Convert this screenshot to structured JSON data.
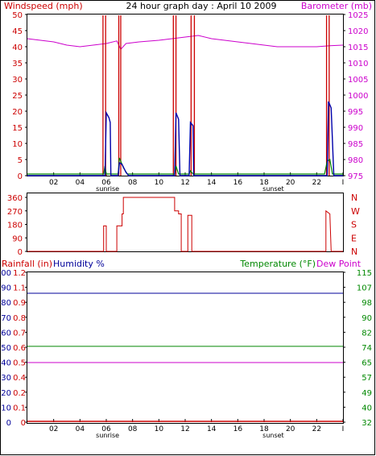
{
  "colors": {
    "frame": "#000000",
    "wind_axis": "#cc0000",
    "barometer": "#cc00cc",
    "wind_avg": "#0000aa",
    "wind_gust": "#008800",
    "direction": "#cc0000",
    "rainfall": "#cc0000",
    "humidity": "#000099",
    "temperature": "#008800",
    "dewpoint": "#cc00cc"
  },
  "chart_data": [
    {
      "id": "wind-baro",
      "type": "line",
      "title": "24 hour graph day : April 10 2009",
      "left_axis_label": "Windspeed (mph)",
      "right_axis_label": "Barometer (mb)",
      "x_ticks": [
        "02",
        "04",
        "06",
        "08",
        "10",
        "12",
        "14",
        "16",
        "18",
        "20",
        "22",
        "I"
      ],
      "x_annotations": [
        {
          "label": "sunrise",
          "hour": 6.1
        },
        {
          "label": "sunset",
          "hour": 18.7
        }
      ],
      "x_range": [
        0,
        24
      ],
      "left_ticks": [
        "0",
        "5",
        "10",
        "15",
        "20",
        "25",
        "30",
        "35",
        "40",
        "45",
        "50"
      ],
      "left_range": [
        0,
        50
      ],
      "right_ticks": [
        "975",
        "980",
        "985",
        "990",
        "995",
        "1000",
        "1005",
        "1010",
        "1015",
        "1020",
        "1025"
      ],
      "right_range": [
        975,
        1025
      ],
      "barometer": [
        [
          0,
          1017.5
        ],
        [
          1,
          1017
        ],
        [
          2,
          1016.5
        ],
        [
          3,
          1015.5
        ],
        [
          4,
          1015
        ],
        [
          5,
          1015.5
        ],
        [
          6,
          1016
        ],
        [
          6.8,
          1016.8
        ],
        [
          7.1,
          1014.2
        ],
        [
          7.5,
          1016
        ],
        [
          8.5,
          1016.5
        ],
        [
          10,
          1017
        ],
        [
          11,
          1017.5
        ],
        [
          12,
          1018
        ],
        [
          13,
          1018.5
        ],
        [
          14,
          1017.5
        ],
        [
          15,
          1017
        ],
        [
          16,
          1016.5
        ],
        [
          17,
          1016
        ],
        [
          18,
          1015.5
        ],
        [
          19,
          1015
        ],
        [
          20,
          1015
        ],
        [
          21,
          1015
        ],
        [
          22,
          1015
        ],
        [
          23,
          1015.3
        ],
        [
          24,
          1015.5
        ]
      ],
      "wind_avg": [
        [
          0,
          0
        ],
        [
          5.9,
          0
        ],
        [
          6.0,
          19.5
        ],
        [
          6.2,
          18
        ],
        [
          6.3,
          16.5
        ],
        [
          6.35,
          0
        ],
        [
          6.9,
          0
        ],
        [
          7.0,
          4
        ],
        [
          7.2,
          3.5
        ],
        [
          7.5,
          1
        ],
        [
          7.7,
          0
        ],
        [
          11.2,
          0
        ],
        [
          11.3,
          19.5
        ],
        [
          11.5,
          17.5
        ],
        [
          11.6,
          0
        ],
        [
          12.3,
          0
        ],
        [
          12.4,
          16.5
        ],
        [
          12.6,
          15.5
        ],
        [
          12.65,
          0
        ],
        [
          22.8,
          0
        ],
        [
          22.9,
          23
        ],
        [
          23.1,
          21
        ],
        [
          23.3,
          0
        ],
        [
          24,
          0
        ]
      ],
      "wind_gust": [
        [
          0,
          0.5
        ],
        [
          5.8,
          0.5
        ],
        [
          5.9,
          3
        ],
        [
          6.0,
          0.5
        ],
        [
          6.9,
          0.5
        ],
        [
          7.0,
          5.5
        ],
        [
          7.3,
          2.5
        ],
        [
          7.6,
          0.5
        ],
        [
          11.2,
          0.5
        ],
        [
          11.3,
          3
        ],
        [
          11.5,
          0.5
        ],
        [
          12.3,
          0.5
        ],
        [
          12.4,
          1.5
        ],
        [
          12.6,
          0.5
        ],
        [
          22.6,
          0.5
        ],
        [
          22.8,
          4.5
        ],
        [
          23.0,
          5
        ],
        [
          23.2,
          0.5
        ],
        [
          24,
          0.5
        ]
      ],
      "wind_red_spikes": [
        5.75,
        5.95,
        6.95,
        7.1,
        11.1,
        11.3,
        12.45,
        12.7,
        22.75,
        22.95
      ]
    },
    {
      "id": "direction",
      "type": "line",
      "left_ticks": [
        "0",
        "90",
        "180",
        "270",
        "360"
      ],
      "left_range": [
        0,
        360
      ],
      "right_ticks": [
        "N",
        "E",
        "S",
        "W",
        "N"
      ],
      "x_range": [
        0,
        24
      ],
      "direction": [
        [
          0,
          0
        ],
        [
          5.8,
          0
        ],
        [
          5.8,
          170
        ],
        [
          6.0,
          170
        ],
        [
          6.0,
          0
        ],
        [
          6.8,
          0
        ],
        [
          6.8,
          170
        ],
        [
          7.2,
          170
        ],
        [
          7.2,
          250
        ],
        [
          7.3,
          250
        ],
        [
          7.3,
          360
        ],
        [
          11.2,
          360
        ],
        [
          11.2,
          270
        ],
        [
          11.5,
          270
        ],
        [
          11.5,
          250
        ],
        [
          11.7,
          250
        ],
        [
          11.7,
          0
        ],
        [
          12.2,
          0
        ],
        [
          12.2,
          240
        ],
        [
          12.5,
          240
        ],
        [
          12.5,
          0
        ],
        [
          22.7,
          0
        ],
        [
          22.7,
          270
        ],
        [
          23.0,
          250
        ],
        [
          23.1,
          0
        ],
        [
          24,
          0
        ]
      ]
    },
    {
      "id": "rain-humidity-temp",
      "type": "line",
      "rain_label": "Rainfall (in)",
      "humidity_label": "Humidity %",
      "temp_label": "Temperature (°F)",
      "dew_label": "Dew Point",
      "x_ticks": [
        "02",
        "04",
        "06",
        "08",
        "10",
        "12",
        "14",
        "16",
        "18",
        "20",
        "22",
        "I"
      ],
      "x_annotations": [
        {
          "label": "sunrise",
          "hour": 6.1
        },
        {
          "label": "sunset",
          "hour": 18.7
        }
      ],
      "x_range": [
        0,
        24
      ],
      "humidity_ticks": [
        "0",
        "10",
        "20",
        "30",
        "40",
        "50",
        "60",
        "70",
        "80",
        "90",
        "100"
      ],
      "humidity_range": [
        0,
        100
      ],
      "rain_ticks": [
        "0",
        "0.1",
        "0.2",
        "0.4",
        "0.5",
        "0.6",
        "0.7",
        "0.8",
        "0.9",
        "1.1",
        "1.2"
      ],
      "rain_range": [
        0,
        1.2
      ],
      "temp_ticks": [
        "32",
        "40",
        "49",
        "57",
        "65",
        "74",
        "82",
        "90",
        "98",
        "107",
        "115"
      ],
      "temp_range": [
        32,
        115
      ],
      "humidity_value": 86,
      "rain_value": 0,
      "temp_value": 74,
      "dew_value": 65
    }
  ]
}
